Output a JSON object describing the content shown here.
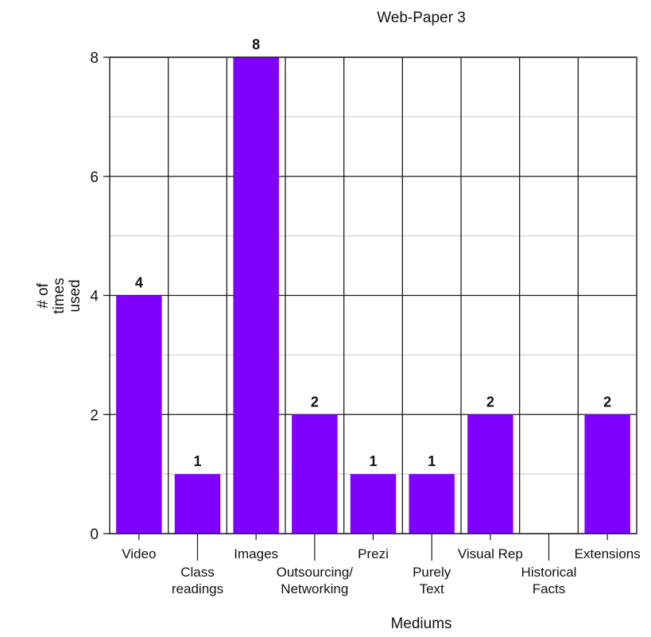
{
  "chart_data": {
    "type": "bar",
    "title": "Web-Paper 3",
    "xlabel": "Mediums",
    "ylabel": [
      "# of",
      "times",
      "used"
    ],
    "categories": [
      [
        "Video"
      ],
      [
        "Class",
        "readings"
      ],
      [
        "Images"
      ],
      [
        "Outsourcing/",
        "Networking"
      ],
      [
        "Prezi"
      ],
      [
        "Purely",
        "Text"
      ],
      [
        "Visual Rep"
      ],
      [
        "Historical",
        "Facts"
      ],
      [
        "Extensions"
      ]
    ],
    "values": [
      4,
      1,
      8,
      2,
      1,
      1,
      2,
      0,
      2
    ],
    "value_labels": [
      "4",
      "1",
      "8",
      "2",
      "1",
      "1",
      "2",
      "",
      "2"
    ],
    "ylim": [
      0,
      8
    ],
    "yticks": [
      0,
      2,
      4,
      6,
      8
    ],
    "grid": true,
    "bar_color": "#7f00ff"
  }
}
